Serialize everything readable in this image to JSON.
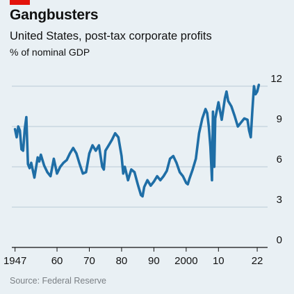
{
  "header": {
    "title": "Gangbusters",
    "subtitle": "United States, post-tax corporate profits",
    "unit": "% of nominal GDP"
  },
  "footer": {
    "source": "Source: Federal Reserve"
  },
  "colors": {
    "accent_red": "#e3120b",
    "line": "#1f6ea6",
    "background": "#e9f0f4",
    "grid": "#b9cad6"
  },
  "chart_data": {
    "type": "line",
    "title": "Gangbusters",
    "subtitle": "United States, post-tax corporate profits",
    "ylabel": "% of nominal GDP",
    "xlabel": "",
    "xlim": [
      1946,
      2025
    ],
    "ylim": [
      0,
      12
    ],
    "grid": true,
    "y_axis_position": "right",
    "y_ticks": [
      0,
      3,
      6,
      9,
      12
    ],
    "y_tick_labels": [
      "0",
      "3",
      "6",
      "9",
      "12"
    ],
    "x_ticks": [
      1947,
      1960,
      1970,
      1980,
      1990,
      2000,
      2010,
      2022
    ],
    "x_tick_labels": [
      "1947",
      "60",
      "70",
      "80",
      "90",
      "2000",
      "10",
      "22"
    ],
    "series": [
      {
        "x": [
          1947.0,
          1947.5,
          1948.0,
          1948.5,
          1949.0,
          1949.5,
          1950.0,
          1950.5,
          1951.0,
          1951.5,
          1952.0,
          1953.0,
          1954.0,
          1954.5,
          1955.0,
          1956.0,
          1957.0,
          1958.0,
          1959.0,
          1960.0,
          1961.0,
          1962.0,
          1963.0,
          1964.0,
          1965.0,
          1966.0,
          1967.0,
          1968.0,
          1969.0,
          1970.0,
          1971.0,
          1972.0,
          1973.0,
          1974.0,
          1974.5,
          1975.0,
          1976.0,
          1977.0,
          1978.0,
          1979.0,
          1980.0,
          1980.5,
          1981.0,
          1982.0,
          1983.0,
          1984.0,
          1985.0,
          1986.0,
          1986.5,
          1987.0,
          1988.0,
          1989.0,
          1990.0,
          1991.0,
          1992.0,
          1993.0,
          1994.0,
          1995.0,
          1996.0,
          1997.0,
          1998.0,
          1999.0,
          2000.0,
          2000.5,
          2001.0,
          2002.0,
          2003.0,
          2004.0,
          2005.0,
          2006.0,
          2006.5,
          2007.0,
          2007.5,
          2008.0,
          2008.3,
          2008.7,
          2009.0,
          2010.0,
          2011.0,
          2012.0,
          2012.5,
          2013.0,
          2014.0,
          2015.0,
          2016.0,
          2017.0,
          2018.0,
          2019.0,
          2019.5,
          2020.0,
          2020.5,
          2021.0,
          2021.5,
          2022.0,
          2022.5
        ],
        "values": [
          8.8,
          8.2,
          9.0,
          8.7,
          7.3,
          7.2,
          8.8,
          9.7,
          6.2,
          5.9,
          6.3,
          5.2,
          6.7,
          6.4,
          6.9,
          6.1,
          5.6,
          5.3,
          6.6,
          5.5,
          6.0,
          6.3,
          6.5,
          7.0,
          7.4,
          7.0,
          6.2,
          5.5,
          5.6,
          7.0,
          7.6,
          7.2,
          7.6,
          6.0,
          5.8,
          7.2,
          7.6,
          8.0,
          8.5,
          8.2,
          6.8,
          5.5,
          6.0,
          5.0,
          5.8,
          5.6,
          4.7,
          3.9,
          3.8,
          4.5,
          5.0,
          4.6,
          4.9,
          5.3,
          5.0,
          5.3,
          5.7,
          6.6,
          6.8,
          6.3,
          5.6,
          5.3,
          4.8,
          4.7,
          5.1,
          5.8,
          6.6,
          8.5,
          9.6,
          10.3,
          10.0,
          9.0,
          7.5,
          5.0,
          10.1,
          6.0,
          9.6,
          10.8,
          9.5,
          11.1,
          11.6,
          10.9,
          10.5,
          9.8,
          9.0,
          9.3,
          9.6,
          9.5,
          8.7,
          8.2,
          10.2,
          12.0,
          11.4,
          11.6,
          12.1
        ]
      }
    ]
  }
}
